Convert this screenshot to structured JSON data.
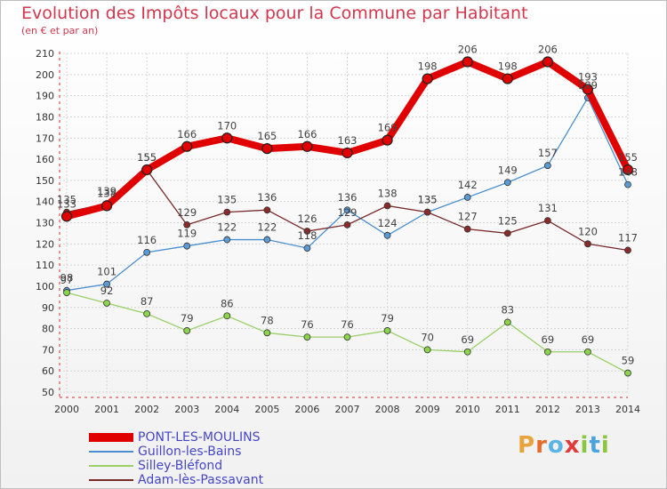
{
  "title": "Evolution des Impôts locaux pour la Commune par Habitant",
  "subtitle": "(en € et par an)",
  "brand": [
    "P",
    "r",
    "o",
    "x",
    "i",
    "t",
    "i"
  ],
  "brand_colors": [
    "#e8a33a",
    "#e86b2a",
    "#5ab4e6",
    "#e23a3a",
    "#8cc63f",
    "#4aa3df",
    "#8cc63f"
  ],
  "chart_data": {
    "type": "line",
    "title": "Evolution des Impôts locaux pour la Commune par Habitant",
    "subtitle": "(en € et par an)",
    "categories": [
      "2000",
      "2001",
      "2002",
      "2003",
      "2004",
      "2005",
      "2006",
      "2007",
      "2008",
      "2009",
      "2010",
      "2011",
      "2012",
      "2013",
      "2014"
    ],
    "ylim": [
      50,
      210
    ],
    "yticks": [
      50,
      60,
      70,
      80,
      90,
      100,
      110,
      120,
      130,
      140,
      150,
      160,
      170,
      180,
      190,
      200,
      210
    ],
    "grid": true,
    "legend_position": "bottom-left",
    "series": [
      {
        "name": "Guillon-les-Bains",
        "color": "#4a8fcf",
        "marker": "#5b9bd5",
        "thick": false,
        "values": [
          98,
          101,
          116,
          119,
          122,
          122,
          118,
          136,
          124,
          135,
          142,
          149,
          157,
          189,
          148
        ]
      },
      {
        "name": "Silley-Bléfond",
        "color": "#9ad068",
        "marker": "#8cd44a",
        "thick": false,
        "values": [
          97,
          92,
          87,
          79,
          86,
          78,
          76,
          76,
          79,
          70,
          69,
          83,
          69,
          69,
          59
        ]
      },
      {
        "name": "Adam-lès-Passavant",
        "color": "#7a2a2a",
        "marker": "#8b2a2a",
        "thick": false,
        "values": [
          135,
          139,
          155,
          129,
          135,
          136,
          126,
          129,
          138,
          135,
          127,
          125,
          131,
          120,
          117
        ]
      },
      {
        "name": "PONT-LES-MOULINS",
        "color": "#e00000",
        "marker": "#e00000",
        "thick": true,
        "values": [
          133,
          138,
          155,
          166,
          170,
          165,
          166,
          163,
          169,
          198,
          206,
          198,
          206,
          193,
          155
        ]
      }
    ],
    "legend_order": [
      3,
      0,
      1,
      2
    ]
  }
}
